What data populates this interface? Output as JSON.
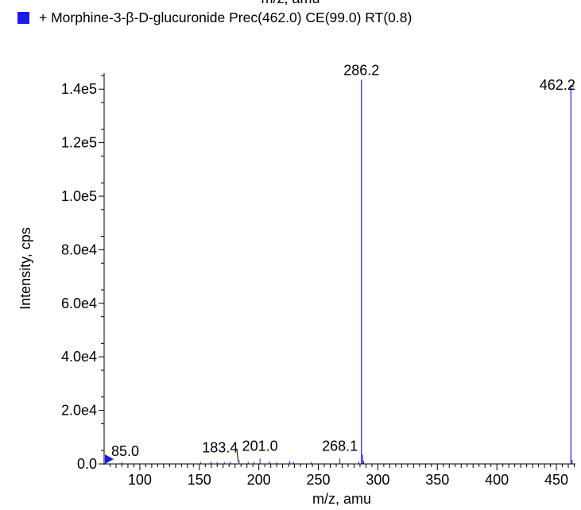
{
  "top_fragment_text": "m/z, amu",
  "legend": {
    "label": "+ Morphine-3-β-D-glucuronide Prec(462.0) CE(99.0) RT(0.8)",
    "color": "#1a1aee"
  },
  "chart_data": {
    "type": "bar",
    "xlabel": "m/z, amu",
    "ylabel": "Intensity, cps",
    "xlim": [
      70,
      466
    ],
    "ylim": [
      0,
      146000
    ],
    "x_ticks": [
      100,
      150,
      200,
      250,
      300,
      350,
      400,
      450
    ],
    "y_ticks": [
      0,
      20000,
      40000,
      60000,
      80000,
      100000,
      120000,
      140000
    ],
    "y_tick_labels": [
      "0.0",
      "2.0e4",
      "4.0e4",
      "6.0e4",
      "8.0e4",
      "1.0e5",
      "1.2e5",
      "1.4e5"
    ],
    "series_color": "#1a1aee",
    "peaks": [
      {
        "mz": 85.0,
        "intensity": 600,
        "label": "85.0"
      },
      {
        "mz": 151.0,
        "intensity": 700
      },
      {
        "mz": 160.0,
        "intensity": 900
      },
      {
        "mz": 165.0,
        "intensity": 600
      },
      {
        "mz": 171.0,
        "intensity": 700
      },
      {
        "mz": 176.0,
        "intensity": 800
      },
      {
        "mz": 183.4,
        "intensity": 1300,
        "label": "183.4"
      },
      {
        "mz": 191.0,
        "intensity": 900
      },
      {
        "mz": 196.0,
        "intensity": 700
      },
      {
        "mz": 201.0,
        "intensity": 2000,
        "label": "201.0"
      },
      {
        "mz": 209.0,
        "intensity": 1000
      },
      {
        "mz": 215.0,
        "intensity": 600
      },
      {
        "mz": 226.0,
        "intensity": 1100
      },
      {
        "mz": 229.0,
        "intensity": 800
      },
      {
        "mz": 244.0,
        "intensity": 600
      },
      {
        "mz": 268.1,
        "intensity": 2000,
        "label": "268.1"
      },
      {
        "mz": 284.0,
        "intensity": 900
      },
      {
        "mz": 286.2,
        "intensity": 143500,
        "label": "286.2"
      },
      {
        "mz": 287.2,
        "intensity": 3500
      },
      {
        "mz": 288.0,
        "intensity": 1200
      },
      {
        "mz": 462.2,
        "intensity": 141500,
        "label": "462.2"
      },
      {
        "mz": 463.2,
        "intensity": 1500
      }
    ]
  }
}
